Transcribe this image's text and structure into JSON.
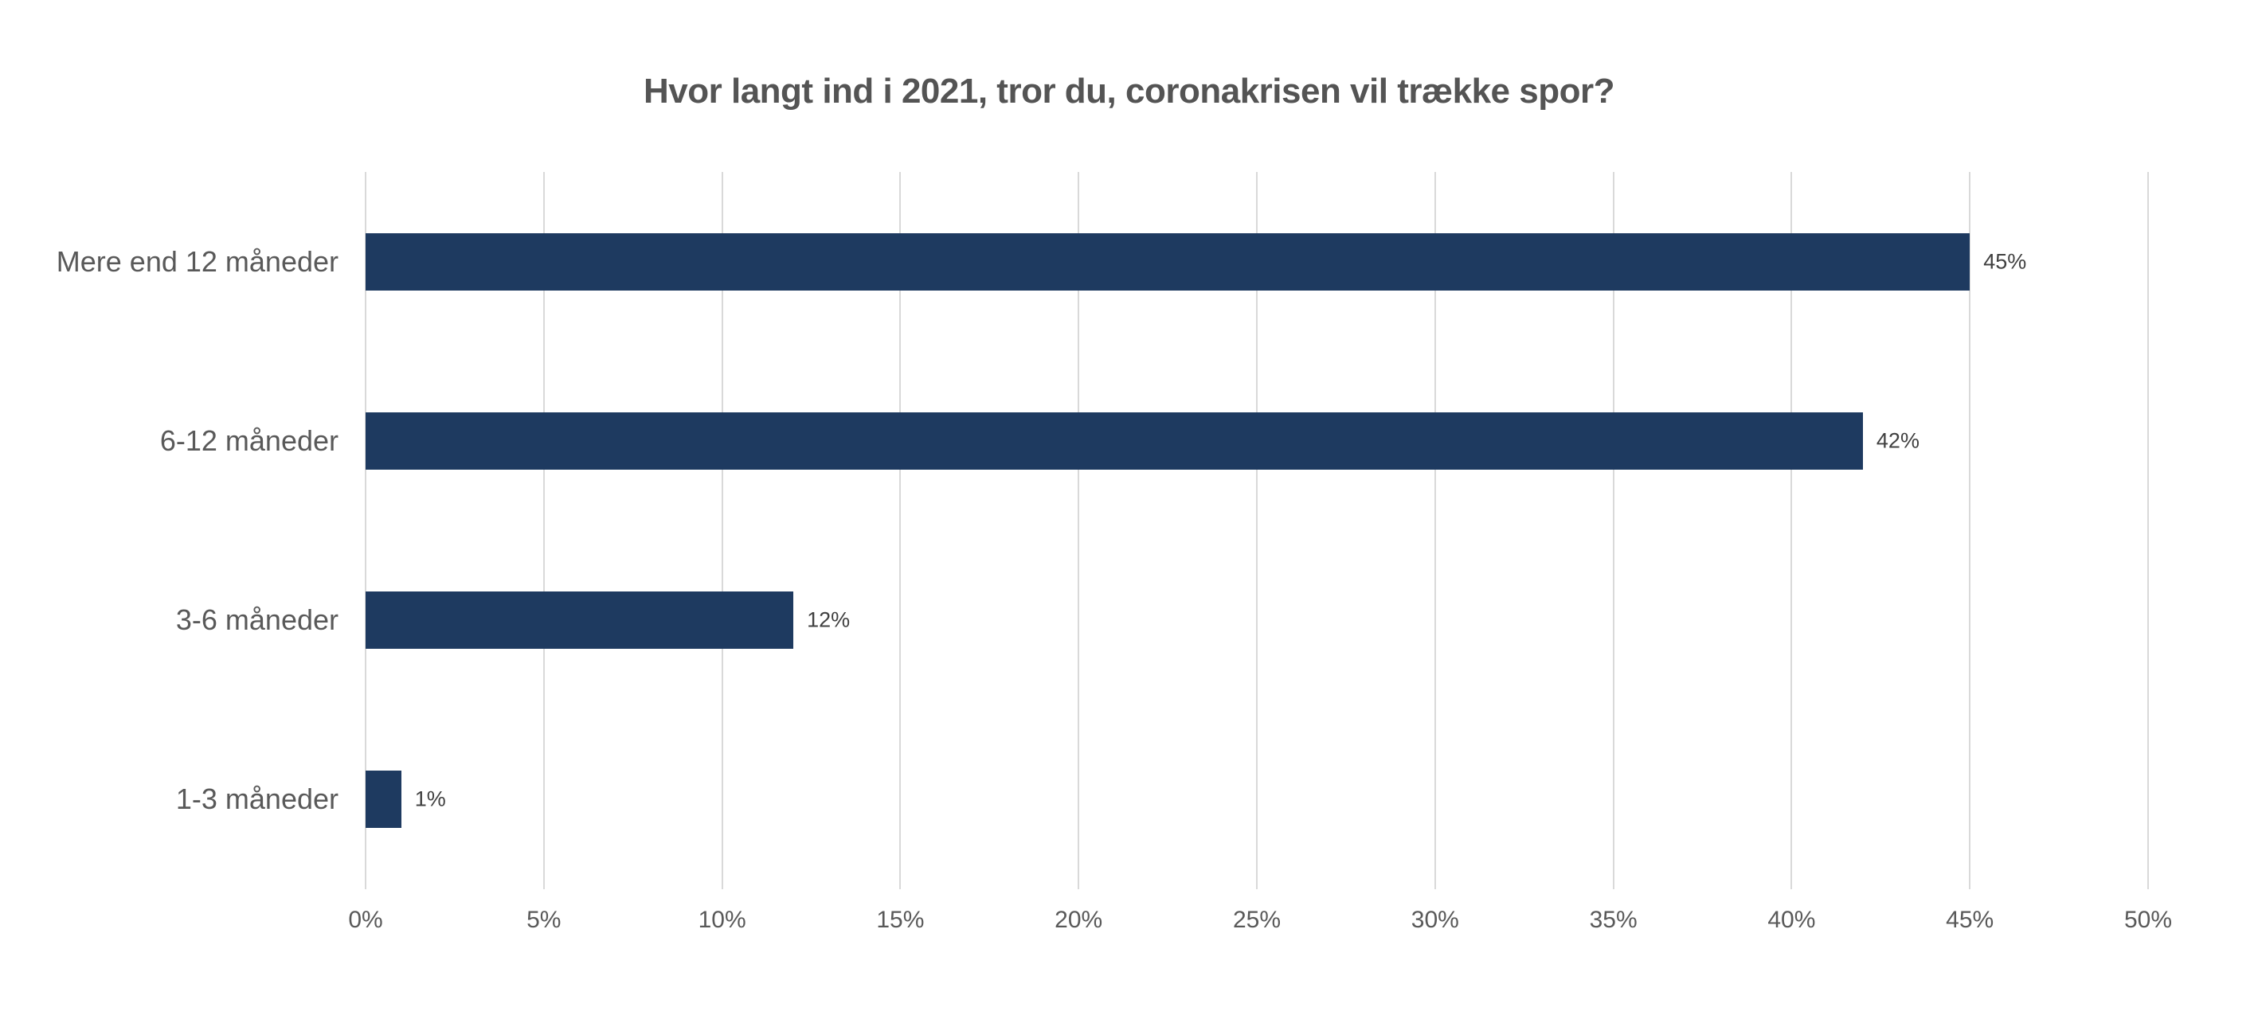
{
  "chart_data": {
    "type": "bar",
    "orientation": "horizontal",
    "title": "Hvor langt ind i 2021, tror du, coronakrisen vil trække spor?",
    "categories": [
      "Mere end 12 måneder",
      "6-12 måneder",
      "3-6 måneder",
      "1-3 måneder"
    ],
    "values": [
      45,
      42,
      12,
      1
    ],
    "data_labels": [
      "45%",
      "42%",
      "12%",
      "1%"
    ],
    "xlim": [
      0,
      50
    ],
    "x_ticks": [
      0,
      5,
      10,
      15,
      20,
      25,
      30,
      35,
      40,
      45,
      50
    ],
    "x_tick_labels": [
      "0%",
      "5%",
      "10%",
      "15%",
      "20%",
      "25%",
      "30%",
      "35%",
      "40%",
      "45%",
      "50%"
    ],
    "xlabel": "",
    "ylabel": "",
    "grid": "vertical-only",
    "legend": "none",
    "colors": {
      "bar": "#1e3a60",
      "gridline": "#d9d9d9",
      "title_text": "#545454",
      "axis_text": "#595959",
      "value_text": "#404040",
      "background": "#ffffff"
    }
  }
}
